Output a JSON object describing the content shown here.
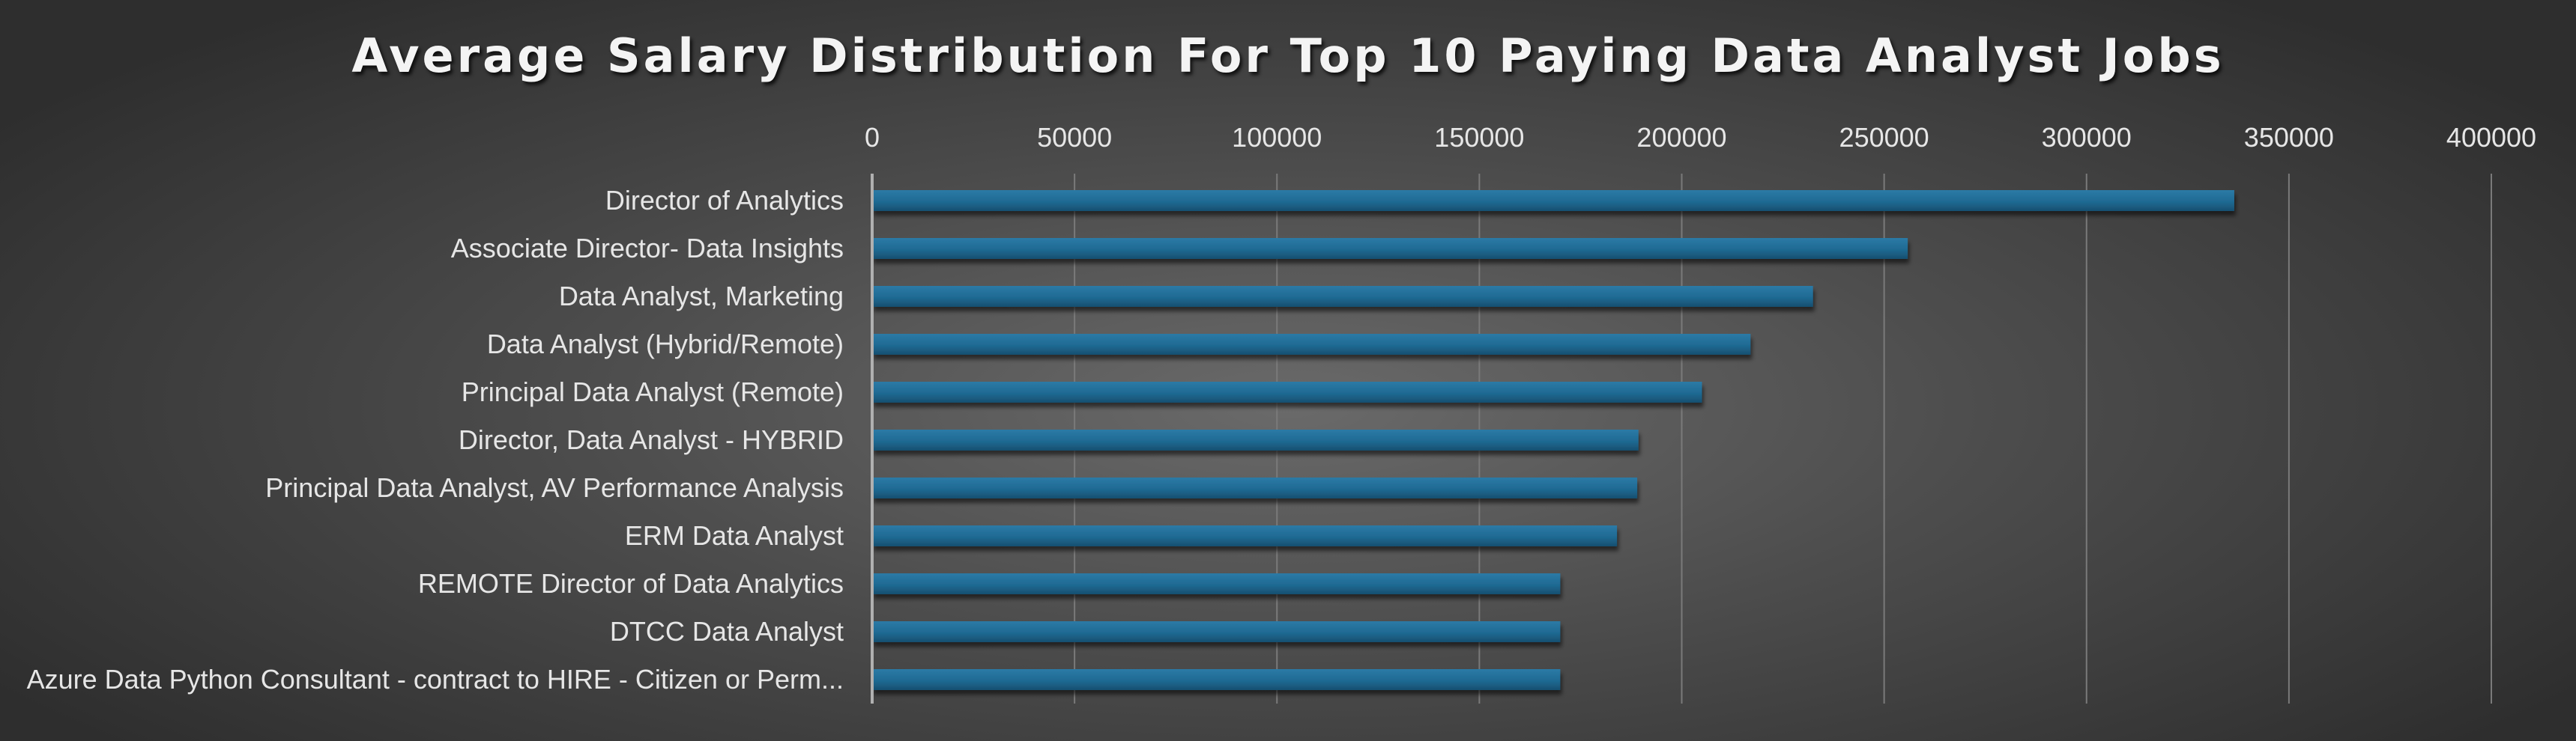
{
  "chart_data": {
    "type": "bar",
    "orientation": "horizontal",
    "title": "Average Salary Distribution For Top 10 Paying Data Analyst Jobs",
    "xlabel": "",
    "ylabel": "",
    "xlim": [
      0,
      400000
    ],
    "x_ticks": [
      0,
      50000,
      100000,
      150000,
      200000,
      250000,
      300000,
      350000,
      400000
    ],
    "x_axis_position": "top",
    "grid": true,
    "legend": "none",
    "categories": [
      "Director of Analytics",
      "Associate Director- Data Insights",
      "Data Analyst, Marketing",
      "Data Analyst (Hybrid/Remote)",
      "Principal Data Analyst (Remote)",
      "Director, Data Analyst - HYBRID",
      "Principal Data Analyst, AV Performance Analysis",
      "ERM Data Analyst",
      "REMOTE Director of Data Analytics",
      "DTCC Data Analyst",
      "Azure Data Python Consultant - contract to HIRE - Citizen or Perm..."
    ],
    "values": [
      336500,
      255830,
      232423,
      217000,
      205000,
      189309,
      189000,
      184000,
      170000,
      170000,
      170000
    ],
    "colors": {
      "bar": "#1f6a93",
      "bar_highlight": "#2d7fac",
      "text": "#e6e6e6"
    }
  }
}
